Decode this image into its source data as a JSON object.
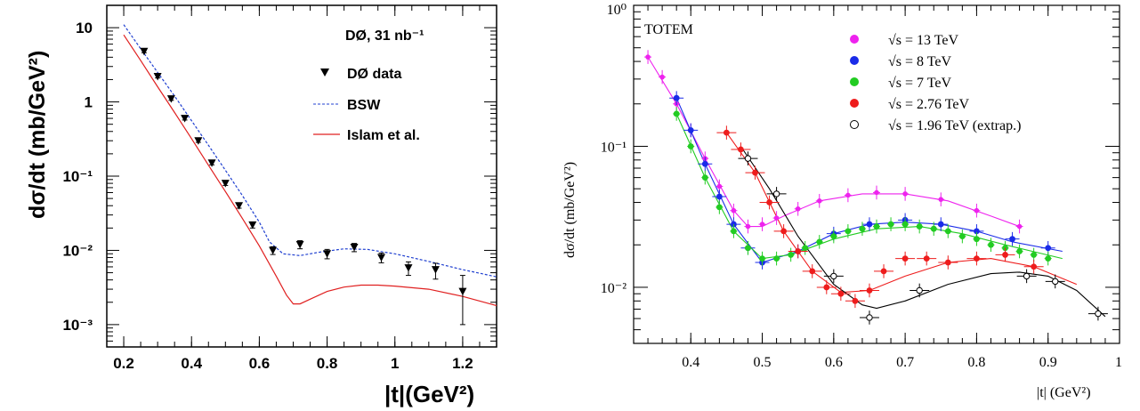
{
  "chart_data": [
    {
      "type": "scatter",
      "title": "DØ, 31 nb⁻¹",
      "ylabel": "dσ/dt (mb/GeV²)",
      "xlabel": "|t|(GeV²)",
      "xlim": [
        0.15,
        1.3
      ],
      "ylim": [
        0.0005,
        20
      ],
      "yscale": "log",
      "x_ticks": [
        "0.2",
        "0.4",
        "0.6",
        "0.8",
        "1",
        "1.2"
      ],
      "y_ticks": [
        "10",
        "1",
        "10⁻¹",
        "10⁻²",
        "10⁻³"
      ],
      "legend": [
        "DØ data",
        "BSW",
        "Islam et al."
      ],
      "colors": {
        "data": "#000000",
        "bsw": "#2040d0",
        "islam": "#e02020"
      },
      "series": [
        {
          "name": "DØ data",
          "kind": "points",
          "x": [
            0.26,
            0.3,
            0.34,
            0.38,
            0.42,
            0.46,
            0.5,
            0.54,
            0.58,
            0.64,
            0.72,
            0.8,
            0.88,
            0.96,
            1.04,
            1.12,
            1.2
          ],
          "y": [
            4.8,
            2.2,
            1.1,
            0.6,
            0.3,
            0.15,
            0.08,
            0.04,
            0.022,
            0.01,
            0.012,
            0.009,
            0.011,
            0.008,
            0.0058,
            0.0055,
            0.0028
          ],
          "err_up": [
            0.2,
            0.1,
            0.05,
            0.03,
            0.015,
            0.008,
            0.005,
            0.003,
            0.002,
            0.0012,
            0.0015,
            0.0013,
            0.0014,
            0.0012,
            0.0012,
            0.0012,
            0.0018
          ],
          "err_down": [
            0.2,
            0.1,
            0.05,
            0.03,
            0.015,
            0.008,
            0.005,
            0.003,
            0.002,
            0.0012,
            0.0015,
            0.0013,
            0.0014,
            0.0012,
            0.0012,
            0.0014,
            0.0018
          ]
        },
        {
          "name": "BSW",
          "kind": "dashed",
          "x": [
            0.2,
            0.25,
            0.3,
            0.35,
            0.4,
            0.45,
            0.5,
            0.55,
            0.6,
            0.63,
            0.67,
            0.72,
            0.78,
            0.85,
            0.92,
            1.0,
            1.1,
            1.2,
            1.3
          ],
          "y": [
            11,
            5.2,
            2.5,
            1.2,
            0.56,
            0.26,
            0.12,
            0.055,
            0.024,
            0.013,
            0.009,
            0.0085,
            0.0095,
            0.0105,
            0.0103,
            0.009,
            0.0071,
            0.0055,
            0.0044
          ]
        },
        {
          "name": "Islam et al.",
          "kind": "solid",
          "x": [
            0.2,
            0.25,
            0.3,
            0.35,
            0.4,
            0.45,
            0.5,
            0.55,
            0.6,
            0.65,
            0.68,
            0.7,
            0.72,
            0.75,
            0.8,
            0.85,
            0.9,
            0.95,
            1.0,
            1.1,
            1.2,
            1.3
          ],
          "y": [
            8,
            3.6,
            1.6,
            0.72,
            0.32,
            0.14,
            0.062,
            0.027,
            0.0115,
            0.0045,
            0.0025,
            0.0019,
            0.0019,
            0.0022,
            0.0028,
            0.0032,
            0.0034,
            0.0034,
            0.0033,
            0.003,
            0.0024,
            0.0018
          ]
        }
      ]
    },
    {
      "type": "scatter",
      "title": "TOTEM",
      "ylabel": "dσ/dt   (mb/GeV²)",
      "xlabel": "|t|   (GeV²)",
      "xlim": [
        0.32,
        1.0
      ],
      "ylim": [
        0.004,
        1
      ],
      "yscale": "log",
      "x_ticks": [
        "0.4",
        "0.5",
        "0.6",
        "0.7",
        "0.8",
        "0.9",
        "1"
      ],
      "y_ticks": [
        "10⁰",
        "10⁻¹",
        "10⁻²"
      ],
      "legend": [
        "√s = 13 TeV",
        "√s = 8 TeV",
        "√s = 7 TeV",
        "√s = 2.76 TeV",
        "√s = 1.96 TeV (extrap.)"
      ],
      "colors": {
        "13": "#ee22ee",
        "8": "#1a2be8",
        "7": "#22cc22",
        "2.76": "#ee1c1c",
        "1.96": "#000000"
      },
      "series": [
        {
          "name": "√s = 13 TeV",
          "x": [
            0.34,
            0.36,
            0.38,
            0.4,
            0.42,
            0.44,
            0.46,
            0.48,
            0.5,
            0.52,
            0.55,
            0.58,
            0.62,
            0.66,
            0.7,
            0.75,
            0.8,
            0.86
          ],
          "y": [
            0.43,
            0.31,
            0.2,
            0.13,
            0.082,
            0.052,
            0.035,
            0.027,
            0.028,
            0.031,
            0.036,
            0.041,
            0.045,
            0.047,
            0.046,
            0.042,
            0.035,
            0.027
          ]
        },
        {
          "name": "√s = 8 TeV",
          "x": [
            0.38,
            0.4,
            0.42,
            0.44,
            0.46,
            0.48,
            0.5,
            0.55,
            0.6,
            0.65,
            0.7,
            0.75,
            0.8,
            0.85,
            0.9
          ],
          "y": [
            0.22,
            0.13,
            0.075,
            0.044,
            0.028,
            0.019,
            0.015,
            0.018,
            0.024,
            0.028,
            0.03,
            0.028,
            0.025,
            0.022,
            0.019
          ]
        },
        {
          "name": "√s = 7 TeV",
          "x": [
            0.38,
            0.4,
            0.42,
            0.44,
            0.46,
            0.48,
            0.5,
            0.52,
            0.54,
            0.56,
            0.58,
            0.6,
            0.62,
            0.64,
            0.66,
            0.68,
            0.7,
            0.72,
            0.74,
            0.76,
            0.78,
            0.8,
            0.82,
            0.84,
            0.86,
            0.88,
            0.9
          ],
          "y": [
            0.17,
            0.1,
            0.06,
            0.037,
            0.025,
            0.019,
            0.016,
            0.016,
            0.017,
            0.019,
            0.021,
            0.023,
            0.025,
            0.026,
            0.027,
            0.028,
            0.028,
            0.027,
            0.026,
            0.025,
            0.023,
            0.022,
            0.02,
            0.019,
            0.018,
            0.017,
            0.016
          ]
        },
        {
          "name": "√s = 2.76 TeV",
          "x": [
            0.45,
            0.47,
            0.49,
            0.51,
            0.53,
            0.55,
            0.57,
            0.59,
            0.61,
            0.63,
            0.65,
            0.67,
            0.7,
            0.73,
            0.76,
            0.8,
            0.84,
            0.88
          ],
          "y": [
            0.125,
            0.095,
            0.065,
            0.04,
            0.025,
            0.018,
            0.013,
            0.01,
            0.009,
            0.008,
            0.0095,
            0.013,
            0.016,
            0.016,
            0.015,
            0.016,
            0.017,
            0.014
          ]
        },
        {
          "name": "√s = 1.96 TeV (extrap.)",
          "x": [
            0.48,
            0.52,
            0.6,
            0.65,
            0.72,
            0.87,
            0.91,
            0.97
          ],
          "y": [
            0.082,
            0.046,
            0.012,
            0.0061,
            0.0095,
            0.012,
            0.011,
            0.0065
          ]
        }
      ],
      "fits": [
        {
          "name": "√s = 13 TeV",
          "x": [
            0.34,
            0.38,
            0.42,
            0.46,
            0.48,
            0.5,
            0.53,
            0.58,
            0.64,
            0.7,
            0.76,
            0.82,
            0.86
          ],
          "y": [
            0.43,
            0.2,
            0.082,
            0.035,
            0.027,
            0.027,
            0.032,
            0.041,
            0.046,
            0.046,
            0.041,
            0.032,
            0.027
          ]
        },
        {
          "name": "√s = 8 TeV",
          "x": [
            0.38,
            0.42,
            0.46,
            0.5,
            0.55,
            0.6,
            0.65,
            0.7,
            0.75,
            0.8,
            0.85,
            0.92
          ],
          "y": [
            0.22,
            0.075,
            0.028,
            0.015,
            0.018,
            0.024,
            0.028,
            0.029,
            0.028,
            0.025,
            0.021,
            0.018
          ]
        },
        {
          "name": "√s = 7 TeV",
          "x": [
            0.38,
            0.42,
            0.46,
            0.5,
            0.54,
            0.6,
            0.66,
            0.72,
            0.78,
            0.84,
            0.92
          ],
          "y": [
            0.17,
            0.06,
            0.025,
            0.016,
            0.017,
            0.022,
            0.026,
            0.027,
            0.024,
            0.02,
            0.016
          ]
        },
        {
          "name": "√s = 2.76 TeV",
          "x": [
            0.45,
            0.49,
            0.53,
            0.57,
            0.61,
            0.65,
            0.7,
            0.76,
            0.82,
            0.88,
            0.94
          ],
          "y": [
            0.125,
            0.065,
            0.025,
            0.013,
            0.0092,
            0.0095,
            0.012,
            0.015,
            0.016,
            0.014,
            0.0105
          ]
        },
        {
          "name": "√s = 1.96 TeV (extrap.)",
          "x": [
            0.47,
            0.51,
            0.55,
            0.6,
            0.64,
            0.66,
            0.7,
            0.76,
            0.82,
            0.86,
            0.9,
            0.94,
            0.98
          ],
          "y": [
            0.1,
            0.05,
            0.023,
            0.0105,
            0.0075,
            0.0071,
            0.008,
            0.0105,
            0.0125,
            0.0128,
            0.012,
            0.0095,
            0.0062
          ]
        }
      ]
    }
  ]
}
